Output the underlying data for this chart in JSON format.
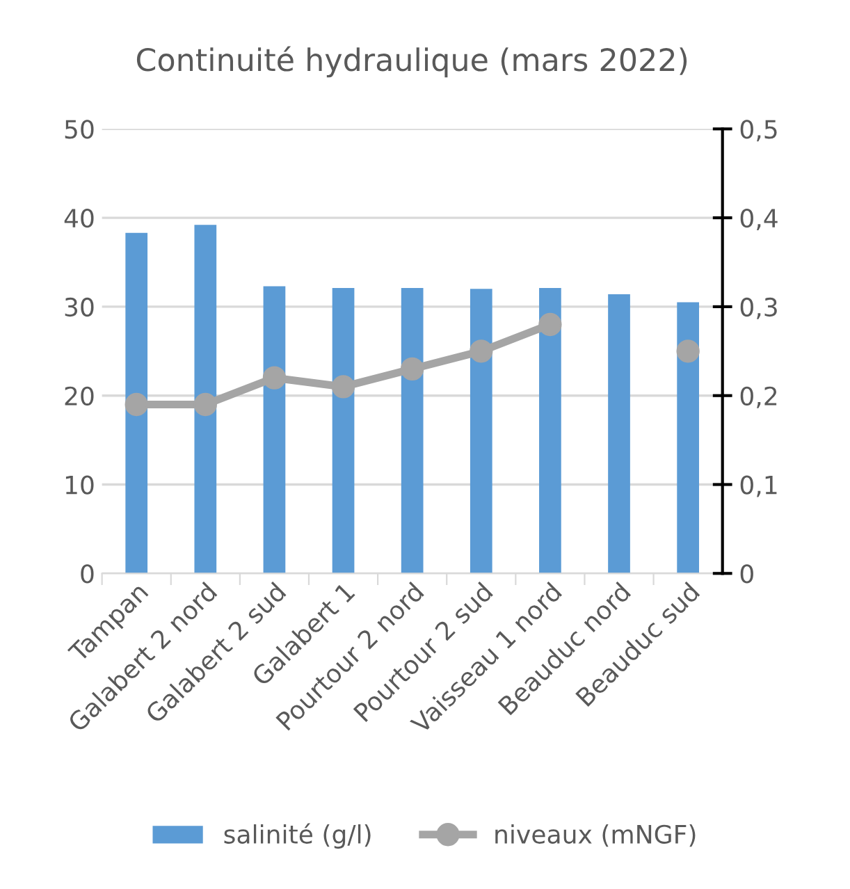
{
  "chart_data": {
    "type": "bar",
    "title": "Continuité hydraulique (mars 2022)",
    "categories": [
      "Tampan",
      "Galabert 2 nord",
      "Galabert 2 sud",
      "Galabert 1",
      "Pourtour 2 nord",
      "Pourtour 2 sud",
      "Vaisseau 1 nord",
      "Beauduc nord",
      "Beauduc sud"
    ],
    "series": [
      {
        "name": "salinité (g/l)",
        "color": "#5b9bd5",
        "values": [
          38.3,
          39.2,
          32.3,
          32.1,
          32.1,
          32.0,
          32.1,
          31.4,
          30.5
        ]
      },
      {
        "name": "niveaux (mNGF)",
        "color": "#a5a5a5",
        "type": "line",
        "axis": "y2",
        "marker": "circle",
        "values": [
          0.19,
          0.19,
          0.22,
          0.21,
          0.23,
          0.25,
          0.28,
          null,
          0.25
        ]
      }
    ],
    "ylim": [
      0,
      50
    ],
    "yticks": [
      0,
      10,
      20,
      30,
      40,
      50
    ],
    "y2lim": [
      0,
      0.5
    ],
    "y2ticks": [
      {
        "value": 0,
        "label": "0"
      },
      {
        "value": 0.1,
        "label": "0,1"
      },
      {
        "value": 0.2,
        "label": "0,2"
      },
      {
        "value": 0.3,
        "label": "0,3"
      },
      {
        "value": 0.4,
        "label": "0,4"
      },
      {
        "value": 0.5,
        "label": "0,5"
      }
    ],
    "grid": "y",
    "legend": "bottom"
  }
}
